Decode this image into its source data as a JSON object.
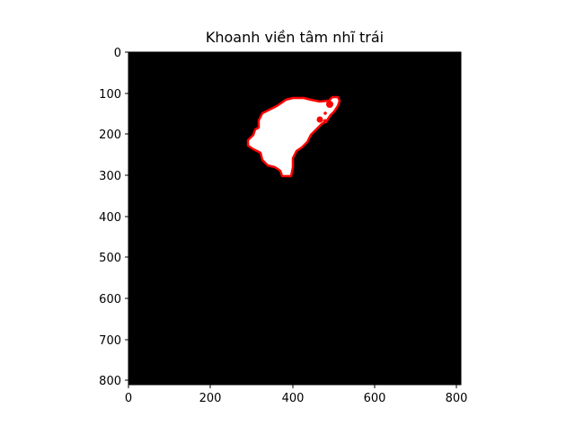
{
  "figure": {
    "title": "Khoanh viền tâm nhĩ trái",
    "x_ticks": [
      "0",
      "200",
      "400",
      "600",
      "800"
    ],
    "y_ticks": [
      "0",
      "100",
      "200",
      "300",
      "400",
      "500",
      "600",
      "700",
      "800"
    ],
    "image_size": [
      810,
      810
    ],
    "background_color": "#000000",
    "mask_color": "#ffffff",
    "contour_color": "#ff0000"
  }
}
